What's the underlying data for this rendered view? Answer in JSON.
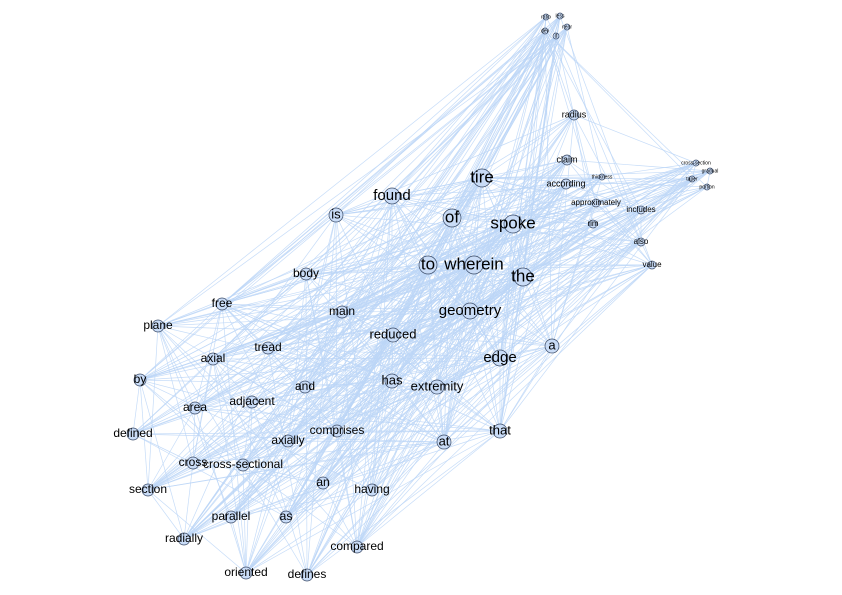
{
  "colors": {
    "edge": "#bcd6f7",
    "node_fill": "#c9dcf7",
    "node_stroke": "#3a4a66",
    "label": "#000000",
    "background": "#ffffff"
  },
  "nodes": [
    {
      "id": "tire",
      "label": "tire",
      "size": "xl"
    },
    {
      "id": "spoke",
      "label": "spoke",
      "size": "xl"
    },
    {
      "id": "of",
      "label": "of",
      "size": "xl"
    },
    {
      "id": "to",
      "label": "to",
      "size": "xl"
    },
    {
      "id": "wherein",
      "label": "wherein",
      "size": "xl"
    },
    {
      "id": "the",
      "label": "the",
      "size": "xl"
    },
    {
      "id": "found",
      "label": "found",
      "size": "l"
    },
    {
      "id": "geometry",
      "label": "geometry",
      "size": "l"
    },
    {
      "id": "edge",
      "label": "edge",
      "size": "l"
    },
    {
      "id": "is",
      "label": "is",
      "size": "m"
    },
    {
      "id": "a",
      "label": "a",
      "size": "m"
    },
    {
      "id": "has",
      "label": "has",
      "size": "m"
    },
    {
      "id": "extremity",
      "label": "extremity",
      "size": "m"
    },
    {
      "id": "that",
      "label": "that",
      "size": "m"
    },
    {
      "id": "at",
      "label": "at",
      "size": "m"
    },
    {
      "id": "reduced",
      "label": "reduced",
      "size": "m"
    },
    {
      "id": "main",
      "label": "main",
      "size": "s"
    },
    {
      "id": "body",
      "label": "body",
      "size": "s"
    },
    {
      "id": "free",
      "label": "free",
      "size": "s"
    },
    {
      "id": "plane",
      "label": "plane",
      "size": "s"
    },
    {
      "id": "axial",
      "label": "axial",
      "size": "s"
    },
    {
      "id": "tread",
      "label": "tread",
      "size": "s"
    },
    {
      "id": "by",
      "label": "by",
      "size": "s"
    },
    {
      "id": "and",
      "label": "and",
      "size": "s"
    },
    {
      "id": "area",
      "label": "area",
      "size": "s"
    },
    {
      "id": "adjacent",
      "label": "adjacent",
      "size": "s"
    },
    {
      "id": "defined",
      "label": "defined",
      "size": "s"
    },
    {
      "id": "axially",
      "label": "axially",
      "size": "s"
    },
    {
      "id": "comprises",
      "label": "comprises",
      "size": "s"
    },
    {
      "id": "cross",
      "label": "cross",
      "size": "s"
    },
    {
      "id": "cross-sectional",
      "label": "cross-sectional",
      "size": "s"
    },
    {
      "id": "section",
      "label": "section",
      "size": "s"
    },
    {
      "id": "an",
      "label": "an",
      "size": "s"
    },
    {
      "id": "having",
      "label": "having",
      "size": "s"
    },
    {
      "id": "parallel",
      "label": "parallel",
      "size": "s"
    },
    {
      "id": "as",
      "label": "as",
      "size": "s"
    },
    {
      "id": "radially",
      "label": "radially",
      "size": "s"
    },
    {
      "id": "compared",
      "label": "compared",
      "size": "s"
    },
    {
      "id": "oriented",
      "label": "oriented",
      "size": "s"
    },
    {
      "id": "defines",
      "label": "defines",
      "size": "s"
    },
    {
      "id": "radius",
      "label": "radius",
      "size": "xs"
    },
    {
      "id": "claim",
      "label": "claim",
      "size": "xs"
    },
    {
      "id": "according",
      "label": "according",
      "size": "xs"
    },
    {
      "id": "approximately",
      "label": "approximately",
      "size": "xxs"
    },
    {
      "id": "includes",
      "label": "includes",
      "size": "xxs"
    },
    {
      "id": "rim",
      "label": "rim",
      "size": "xxs"
    },
    {
      "id": "also",
      "label": "also",
      "size": "xxs"
    },
    {
      "id": "value",
      "label": "value",
      "size": "xxs"
    },
    {
      "id": "thickness",
      "label": "thickness",
      "size": "tiny"
    },
    {
      "id": "cross-section",
      "label": "cross-section",
      "size": "tiny"
    },
    {
      "id": "gradual",
      "label": "gradual",
      "size": "tiny"
    },
    {
      "id": "taper",
      "label": "taper",
      "size": "tiny"
    },
    {
      "id": "portion",
      "label": "portion",
      "size": "tiny"
    },
    {
      "id": "top1",
      "label": "ratio",
      "size": "tiny"
    },
    {
      "id": "top2",
      "label": "less",
      "size": "tiny"
    },
    {
      "id": "top3",
      "label": "dev",
      "size": "tiny"
    },
    {
      "id": "top4",
      "label": "near",
      "size": "tiny"
    },
    {
      "id": "top5",
      "label": "d",
      "size": "tiny"
    }
  ]
}
